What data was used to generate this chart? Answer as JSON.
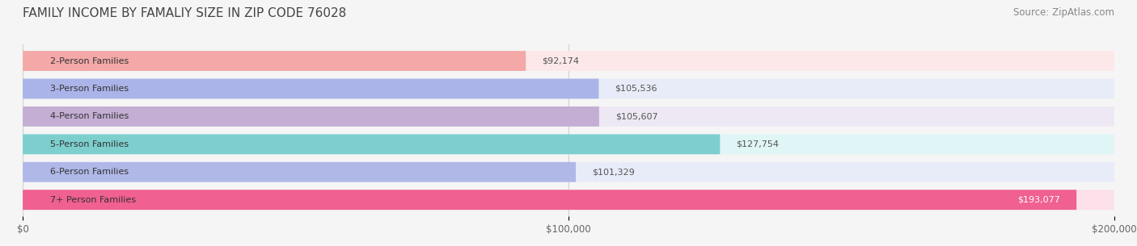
{
  "title": "FAMILY INCOME BY FAMALIY SIZE IN ZIP CODE 76028",
  "source": "Source: ZipAtlas.com",
  "categories": [
    "2-Person Families",
    "3-Person Families",
    "4-Person Families",
    "5-Person Families",
    "6-Person Families",
    "7+ Person Families"
  ],
  "values": [
    92174,
    105536,
    105607,
    127754,
    101329,
    193077
  ],
  "bar_colors": [
    "#f4a8a8",
    "#aab4e8",
    "#c4aed4",
    "#7dcfce",
    "#b0b8e8",
    "#f06090"
  ],
  "bar_bg_colors": [
    "#fce8e8",
    "#e8ecf8",
    "#ede8f4",
    "#e0f5f5",
    "#e8ecf8",
    "#fce0ea"
  ],
  "label_colors": [
    "#555555",
    "#555555",
    "#555555",
    "#ffffff",
    "#555555",
    "#ffffff"
  ],
  "xlim": [
    0,
    200000
  ],
  "xticks": [
    0,
    100000,
    200000
  ],
  "xtick_labels": [
    "$0",
    "$100,000",
    "$200,000"
  ],
  "bg_color": "#f5f5f5",
  "title_fontsize": 11,
  "source_fontsize": 8.5,
  "label_fontsize": 8,
  "value_fontsize": 8
}
